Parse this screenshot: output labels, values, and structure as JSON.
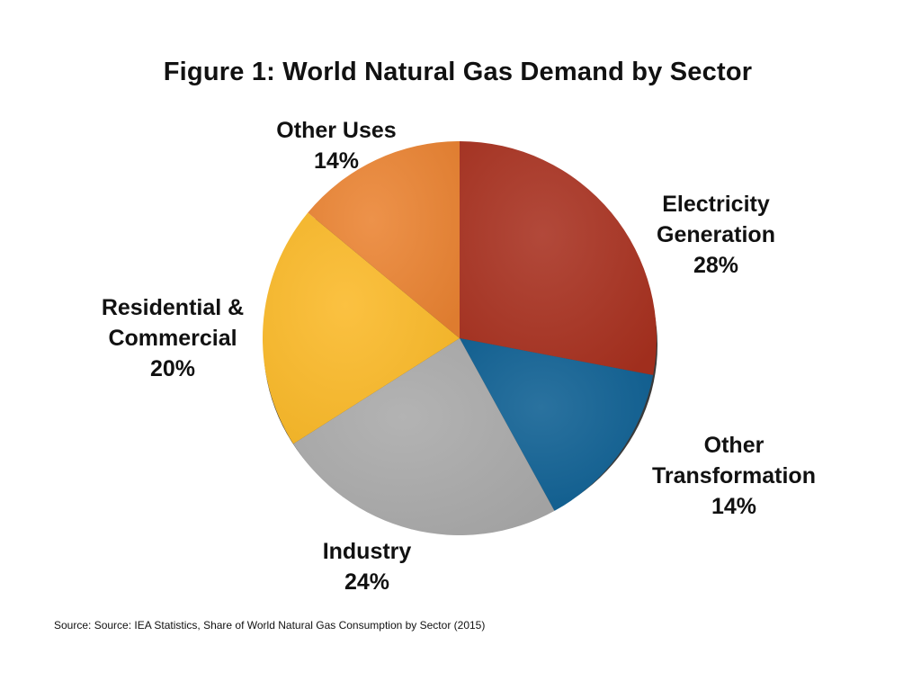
{
  "chart_data": {
    "type": "pie",
    "title": "Figure 1: World Natural Gas Demand by Sector",
    "slices": [
      {
        "label": "Electricity Generation",
        "label_lines": [
          "Electricity",
          "Generation"
        ],
        "value": 28,
        "value_label": "28%",
        "color": "#a8301f"
      },
      {
        "label": "Other Transformation",
        "label_lines": [
          "Other",
          "Transformation"
        ],
        "value": 14,
        "value_label": "14%",
        "color": "#0d5f92"
      },
      {
        "label": "Industry",
        "label_lines": [
          "Industry"
        ],
        "value": 24,
        "value_label": "24%",
        "color": "#a9a9a9"
      },
      {
        "label": "Residential & Commercial",
        "label_lines": [
          "Residential &",
          "Commercial"
        ],
        "value": 20,
        "value_label": "20%",
        "color": "#fbb927"
      },
      {
        "label": "Other Uses",
        "label_lines": [
          "Other Uses"
        ],
        "value": 14,
        "value_label": "14%",
        "color": "#ea8331"
      }
    ],
    "source": "Source: Source: IEA Statistics, Share of World Natural Gas Consumption by Sector (2015)"
  }
}
